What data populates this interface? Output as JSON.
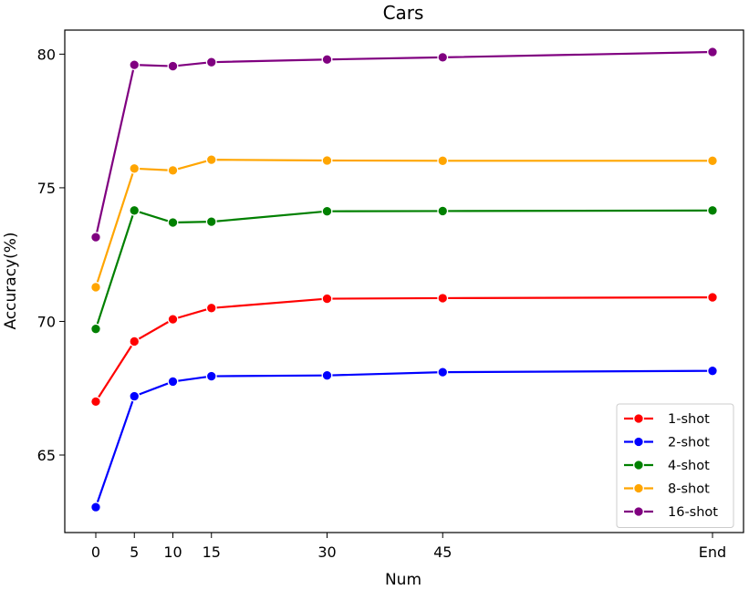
{
  "chart_data": {
    "type": "line",
    "title": "Cars",
    "xlabel": "Num",
    "ylabel": "Accuracy(%)",
    "categories": [
      "0",
      "5",
      "10",
      "15",
      "30",
      "45",
      "End"
    ],
    "x": [
      0,
      5,
      10,
      15,
      30,
      45,
      80
    ],
    "ylim": [
      62.1,
      80.9
    ],
    "yticks": [
      65,
      70,
      75,
      80
    ],
    "grid": false,
    "legend_position": "lower-right",
    "series": [
      {
        "name": "1-shot",
        "color": "#ff0000",
        "values": [
          67.0,
          69.25,
          70.08,
          70.5,
          70.85,
          70.87,
          70.9
        ]
      },
      {
        "name": "2-shot",
        "color": "#0000ff",
        "values": [
          63.05,
          67.2,
          67.75,
          67.95,
          67.98,
          68.1,
          68.15
        ]
      },
      {
        "name": "4-shot",
        "color": "#008000",
        "values": [
          69.72,
          74.15,
          73.7,
          73.73,
          74.12,
          74.13,
          74.15
        ]
      },
      {
        "name": "8-shot",
        "color": "#ffa500",
        "values": [
          71.28,
          75.72,
          75.65,
          76.05,
          76.02,
          76.01,
          76.01
        ]
      },
      {
        "name": "16-shot",
        "color": "#800080",
        "values": [
          73.15,
          79.6,
          79.55,
          79.7,
          79.8,
          79.88,
          80.08
        ]
      }
    ]
  }
}
